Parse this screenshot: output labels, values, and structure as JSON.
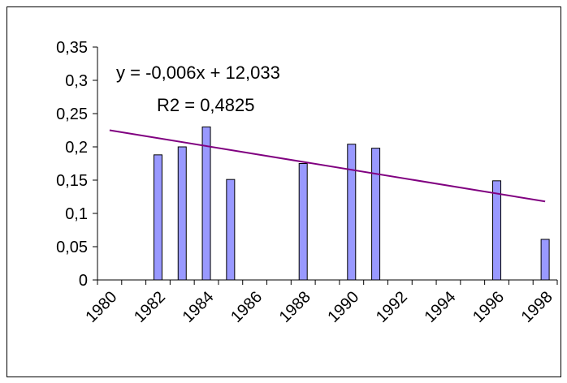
{
  "chart_data": {
    "type": "bar",
    "annotations": [
      "y = -0,006x + 12,033",
      "R2 = 0,4825"
    ],
    "categories": [
      "1980",
      null,
      "1982",
      null,
      "1984",
      null,
      "1986",
      null,
      "1988",
      null,
      "1990",
      null,
      "1992",
      null,
      "1994",
      null,
      "1996",
      null,
      "1998"
    ],
    "values": [
      null,
      null,
      0.188,
      0.2,
      0.23,
      0.151,
      null,
      null,
      0.175,
      null,
      0.204,
      0.198,
      null,
      null,
      null,
      null,
      0.149,
      null,
      0.061
    ],
    "color": "#9999ff",
    "trendline": {
      "from": 0.225,
      "to": 0.118,
      "color": "#800080"
    },
    "ylim": [
      0,
      0.35
    ],
    "yticks": [
      0,
      {
        "value": 0.05,
        "label": "0,05"
      },
      {
        "value": 0.1,
        "label": "0,1"
      },
      {
        "value": 0.15,
        "label": "0,15"
      },
      {
        "value": 0.2,
        "label": "0,2"
      },
      {
        "value": 0.25,
        "label": "0,25"
      },
      {
        "value": 0.3,
        "label": "0,3"
      },
      {
        "value": 0.35,
        "label": "0,35"
      }
    ],
    "grid": false
  }
}
